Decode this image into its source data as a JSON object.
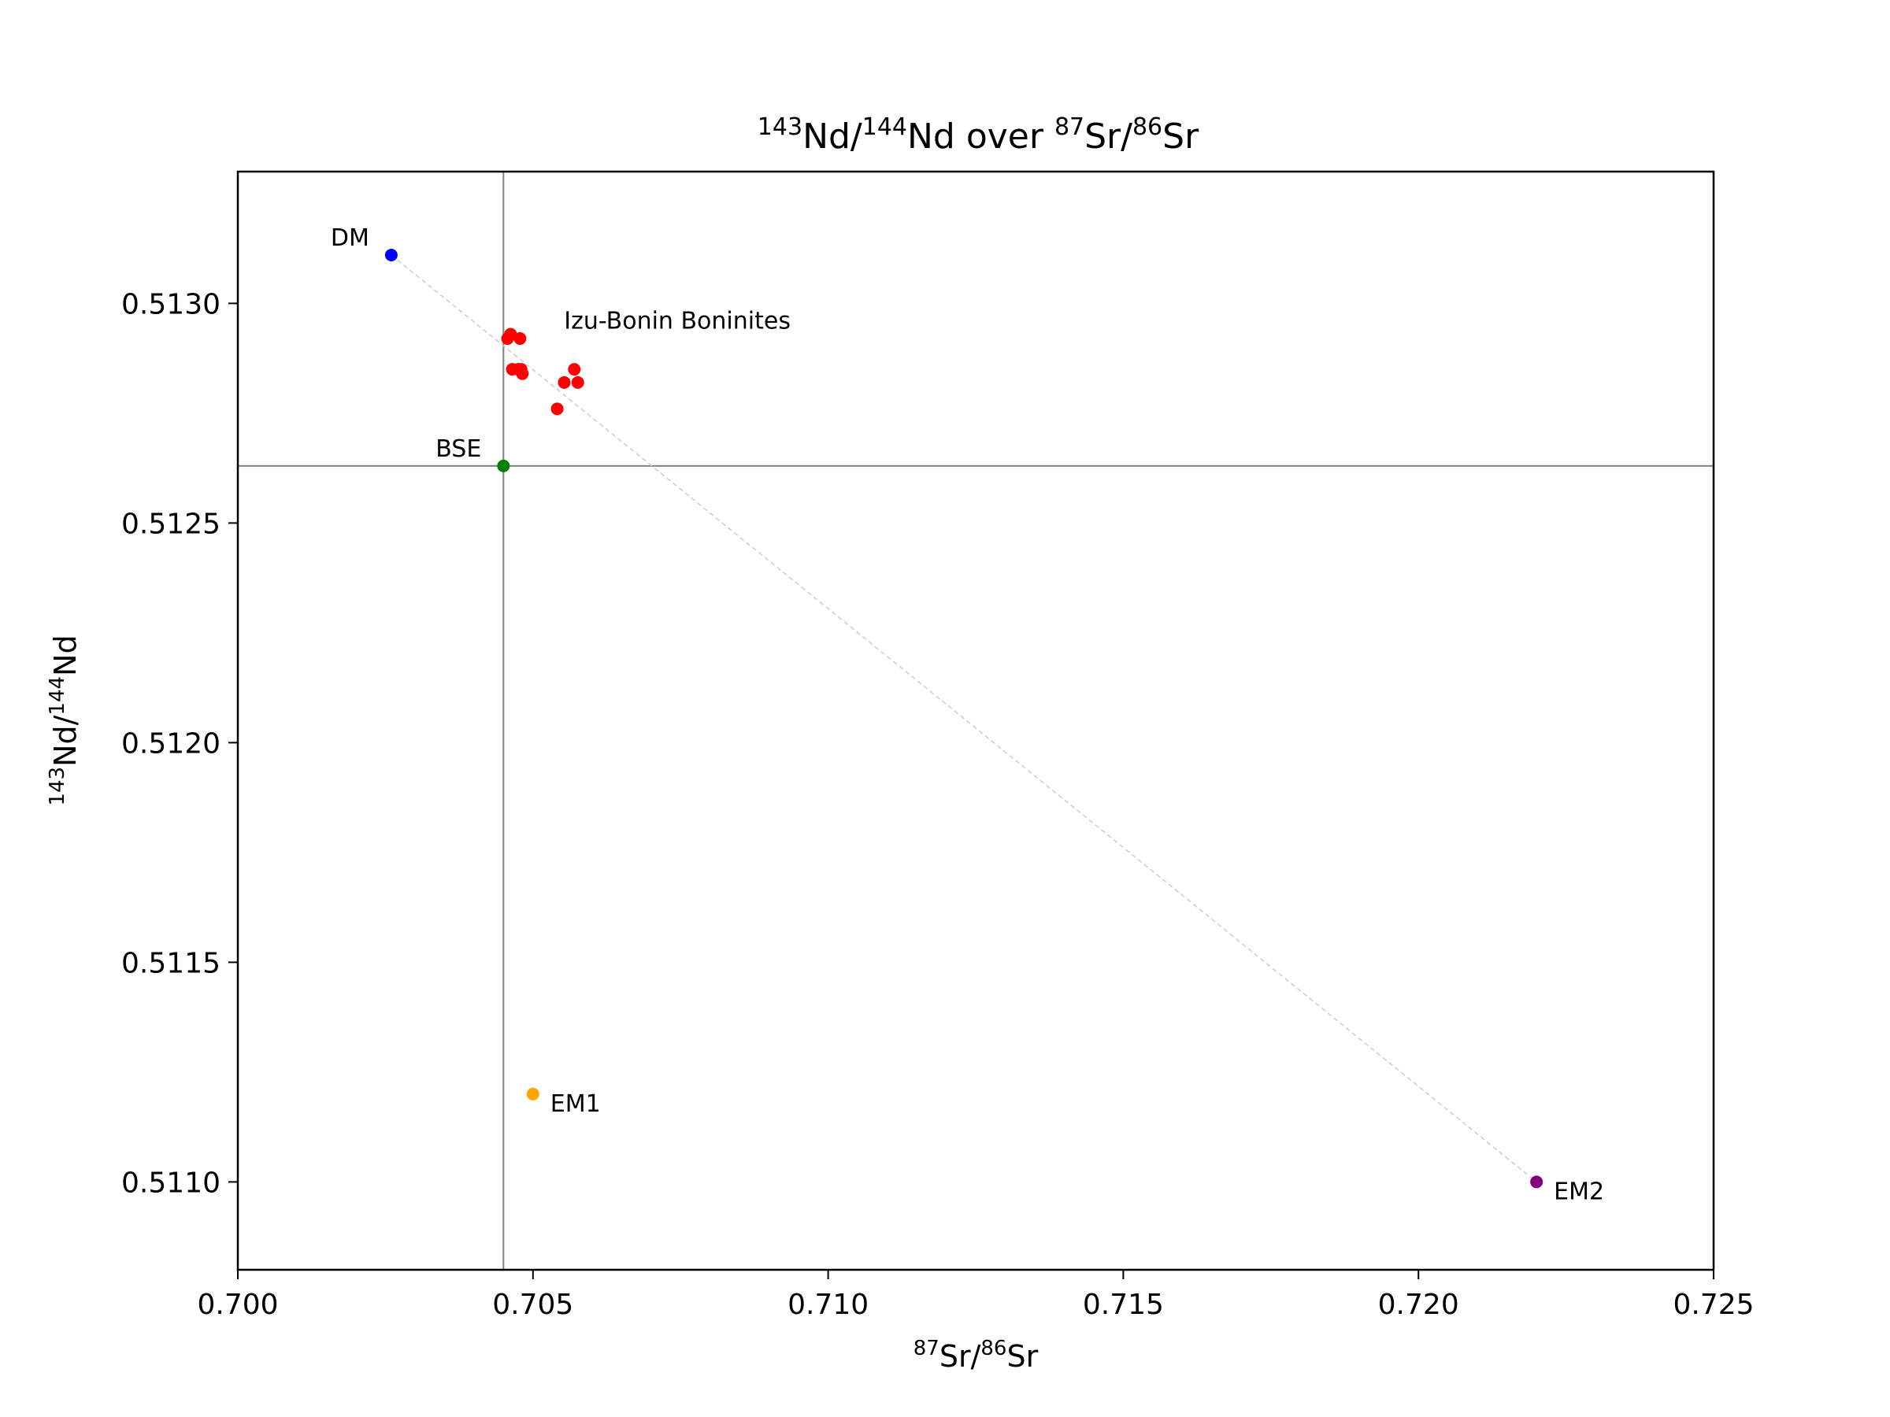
{
  "chart_data": {
    "type": "scatter",
    "title": {
      "sup1": "143",
      "mid1": "Nd/",
      "sup2": "144",
      "mid2": "Nd over ",
      "sup3": "87",
      "mid3": "Sr/",
      "sup4": "86",
      "mid4": "Sr"
    },
    "xlabel": {
      "sup1": "87",
      "mid1": "Sr/",
      "sup2": "86",
      "mid2": "Sr"
    },
    "ylabel": {
      "sup1": "143",
      "mid1": "Nd/",
      "sup2": "144",
      "mid2": "Nd"
    },
    "xlim": [
      0.7,
      0.725
    ],
    "ylim": [
      0.5108,
      0.5133
    ],
    "xticks": [
      "0.700",
      "0.705",
      "0.710",
      "0.715",
      "0.720",
      "0.725"
    ],
    "yticks": [
      "0.5110",
      "0.5115",
      "0.5120",
      "0.5125",
      "0.5130"
    ],
    "reference_lines": {
      "x": 0.7045,
      "y": 0.51263,
      "color": "#808080"
    },
    "mixing_line": {
      "from": [
        0.7026,
        0.51311
      ],
      "to": [
        0.722,
        0.511
      ],
      "color": "#cccccc",
      "style": "dashed"
    },
    "end_members": [
      {
        "name": "DM",
        "x": 0.7026,
        "y": 0.51311,
        "color": "#0000ff",
        "label_side": "left"
      },
      {
        "name": "BSE",
        "x": 0.7045,
        "y": 0.51263,
        "color": "#008000",
        "label_side": "left"
      },
      {
        "name": "EM1",
        "x": 0.705,
        "y": 0.5112,
        "color": "#ffa500",
        "label_side": "right"
      },
      {
        "name": "EM2",
        "x": 0.722,
        "y": 0.511,
        "color": "#800080",
        "label_side": "right"
      }
    ],
    "series": [
      {
        "name": "Izu-Bonin Boninites",
        "color": "#ff0000",
        "label_anchor": [
          0.7055,
          0.51296
        ],
        "x": [
          0.70462,
          0.70457,
          0.70478,
          0.70465,
          0.70475,
          0.7048,
          0.70482,
          0.7057,
          0.70553,
          0.70576,
          0.70541
        ],
        "y": [
          0.51293,
          0.51292,
          0.51292,
          0.51285,
          0.51285,
          0.51285,
          0.51284,
          0.51285,
          0.51282,
          0.51282,
          0.51276
        ]
      }
    ],
    "grid": false,
    "legend": "none"
  }
}
